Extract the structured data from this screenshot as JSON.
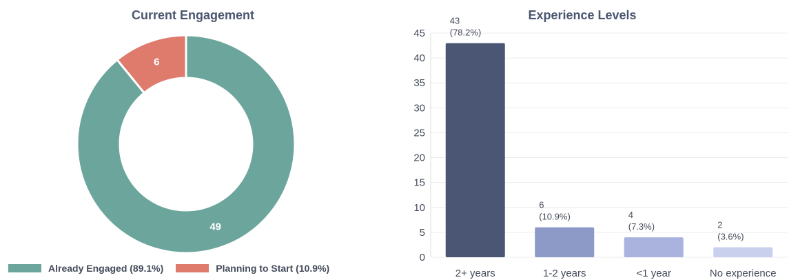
{
  "chart_data": [
    {
      "type": "pie",
      "variant": "donut",
      "title": "Current Engagement",
      "slices": [
        {
          "label": "Already Engaged (89.1%)",
          "value": 49,
          "display": "49",
          "color": "#6ba59c"
        },
        {
          "label": "Planning to Start (10.9%)",
          "value": 6,
          "display": "6",
          "color": "#de7b6c"
        }
      ],
      "legend": "bottom"
    },
    {
      "type": "bar",
      "title": "Experience Levels",
      "categories": [
        "2+ years",
        "1-2 years",
        "<1 year",
        "No experience"
      ],
      "values": [
        43,
        6,
        4,
        2
      ],
      "data_labels": [
        {
          "count": "43",
          "percent": "(78.2%)"
        },
        {
          "count": "6",
          "percent": "(10.9%)"
        },
        {
          "count": "4",
          "percent": "(7.3%)"
        },
        {
          "count": "2",
          "percent": "(3.6%)"
        }
      ],
      "colors": [
        "#4a5673",
        "#8d99c6",
        "#a9b3dd",
        "#c8d0ee"
      ],
      "yticks": [
        "0",
        "5",
        "10",
        "15",
        "20",
        "25",
        "30",
        "35",
        "40",
        "45"
      ],
      "ylim": [
        0,
        45
      ],
      "grid": true,
      "xlabel": "",
      "ylabel": ""
    }
  ]
}
